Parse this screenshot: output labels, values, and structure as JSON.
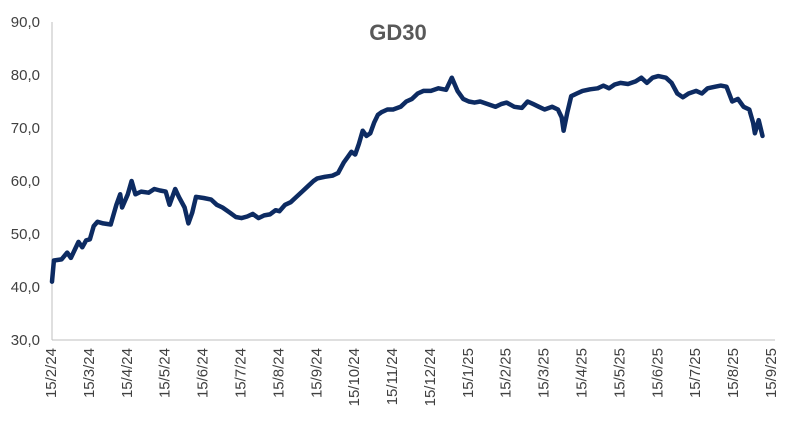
{
  "chart_data": {
    "type": "line",
    "title": "GD30",
    "xlabel": "",
    "ylabel": "",
    "ylim": [
      30,
      90
    ],
    "y_ticks": [
      30,
      40,
      50,
      60,
      70,
      80,
      90
    ],
    "y_tick_labels": [
      "30,0",
      "40,0",
      "50,0",
      "60,0",
      "70,0",
      "80,0",
      "90,0"
    ],
    "x_tick_labels": [
      "15/2/24",
      "15/3/24",
      "15/4/24",
      "15/5/24",
      "15/6/24",
      "15/7/24",
      "15/8/24",
      "15/9/24",
      "15/10/24",
      "15/11/24",
      "15/12/24",
      "15/1/25",
      "15/2/25",
      "15/3/25",
      "15/4/25",
      "15/5/25",
      "15/6/25",
      "15/7/25",
      "15/8/25",
      "15/9/25"
    ],
    "grid": false,
    "line_color": "#0d2b62",
    "series": [
      {
        "name": "GD30",
        "points": [
          [
            0.0,
            41.0
          ],
          [
            0.05,
            45.0
          ],
          [
            0.25,
            45.2
          ],
          [
            0.4,
            46.5
          ],
          [
            0.5,
            45.5
          ],
          [
            0.6,
            47.0
          ],
          [
            0.7,
            48.5
          ],
          [
            0.8,
            47.5
          ],
          [
            0.9,
            48.8
          ],
          [
            1.0,
            49.0
          ],
          [
            1.1,
            51.5
          ],
          [
            1.2,
            52.3
          ],
          [
            1.35,
            52.0
          ],
          [
            1.55,
            51.8
          ],
          [
            1.7,
            55.5
          ],
          [
            1.8,
            57.5
          ],
          [
            1.85,
            55.0
          ],
          [
            2.0,
            57.5
          ],
          [
            2.1,
            60.0
          ],
          [
            2.2,
            57.5
          ],
          [
            2.35,
            58.0
          ],
          [
            2.55,
            57.8
          ],
          [
            2.7,
            58.5
          ],
          [
            2.85,
            58.2
          ],
          [
            3.0,
            58.0
          ],
          [
            3.1,
            55.5
          ],
          [
            3.25,
            58.5
          ],
          [
            3.35,
            57.0
          ],
          [
            3.5,
            55.0
          ],
          [
            3.6,
            52.0
          ],
          [
            3.7,
            54.0
          ],
          [
            3.8,
            57.0
          ],
          [
            4.0,
            56.8
          ],
          [
            4.2,
            56.5
          ],
          [
            4.35,
            55.5
          ],
          [
            4.5,
            55.0
          ],
          [
            4.7,
            54.0
          ],
          [
            4.85,
            53.2
          ],
          [
            5.0,
            53.0
          ],
          [
            5.15,
            53.3
          ],
          [
            5.3,
            53.8
          ],
          [
            5.45,
            53.0
          ],
          [
            5.6,
            53.5
          ],
          [
            5.75,
            53.7
          ],
          [
            5.9,
            54.5
          ],
          [
            6.0,
            54.3
          ],
          [
            6.15,
            55.5
          ],
          [
            6.3,
            56.0
          ],
          [
            6.45,
            57.0
          ],
          [
            6.6,
            58.0
          ],
          [
            6.75,
            59.0
          ],
          [
            6.9,
            60.0
          ],
          [
            7.0,
            60.5
          ],
          [
            7.2,
            60.8
          ],
          [
            7.4,
            61.0
          ],
          [
            7.55,
            61.5
          ],
          [
            7.7,
            63.5
          ],
          [
            7.8,
            64.5
          ],
          [
            7.9,
            65.5
          ],
          [
            8.0,
            65.0
          ],
          [
            8.1,
            67.0
          ],
          [
            8.2,
            69.5
          ],
          [
            8.3,
            68.5
          ],
          [
            8.4,
            69.0
          ],
          [
            8.5,
            71.0
          ],
          [
            8.6,
            72.5
          ],
          [
            8.7,
            73.0
          ],
          [
            8.85,
            73.5
          ],
          [
            9.0,
            73.5
          ],
          [
            9.2,
            74.0
          ],
          [
            9.35,
            75.0
          ],
          [
            9.5,
            75.5
          ],
          [
            9.65,
            76.5
          ],
          [
            9.8,
            77.0
          ],
          [
            10.0,
            77.0
          ],
          [
            10.2,
            77.5
          ],
          [
            10.4,
            77.2
          ],
          [
            10.55,
            79.5
          ],
          [
            10.7,
            77.0
          ],
          [
            10.85,
            75.5
          ],
          [
            11.0,
            75.0
          ],
          [
            11.15,
            74.8
          ],
          [
            11.3,
            75.0
          ],
          [
            11.5,
            74.5
          ],
          [
            11.7,
            74.0
          ],
          [
            11.85,
            74.5
          ],
          [
            12.0,
            74.8
          ],
          [
            12.2,
            74.0
          ],
          [
            12.4,
            73.8
          ],
          [
            12.55,
            75.0
          ],
          [
            12.7,
            74.5
          ],
          [
            12.85,
            74.0
          ],
          [
            13.0,
            73.5
          ],
          [
            13.2,
            74.0
          ],
          [
            13.35,
            73.5
          ],
          [
            13.45,
            72.0
          ],
          [
            13.5,
            69.5
          ],
          [
            13.6,
            73.0
          ],
          [
            13.7,
            76.0
          ],
          [
            13.85,
            76.5
          ],
          [
            14.0,
            77.0
          ],
          [
            14.2,
            77.3
          ],
          [
            14.4,
            77.5
          ],
          [
            14.55,
            78.0
          ],
          [
            14.7,
            77.5
          ],
          [
            14.85,
            78.2
          ],
          [
            15.0,
            78.5
          ],
          [
            15.2,
            78.3
          ],
          [
            15.4,
            78.8
          ],
          [
            15.55,
            79.5
          ],
          [
            15.7,
            78.5
          ],
          [
            15.85,
            79.5
          ],
          [
            16.0,
            79.8
          ],
          [
            16.2,
            79.5
          ],
          [
            16.35,
            78.5
          ],
          [
            16.5,
            76.5
          ],
          [
            16.65,
            75.8
          ],
          [
            16.8,
            76.5
          ],
          [
            17.0,
            77.0
          ],
          [
            17.15,
            76.5
          ],
          [
            17.3,
            77.5
          ],
          [
            17.5,
            77.8
          ],
          [
            17.65,
            78.0
          ],
          [
            17.8,
            77.8
          ],
          [
            17.95,
            75.0
          ],
          [
            18.1,
            75.5
          ],
          [
            18.25,
            74.0
          ],
          [
            18.4,
            73.5
          ],
          [
            18.5,
            71.0
          ],
          [
            18.55,
            69.0
          ],
          [
            18.65,
            71.5
          ],
          [
            18.75,
            68.5
          ]
        ]
      }
    ]
  }
}
